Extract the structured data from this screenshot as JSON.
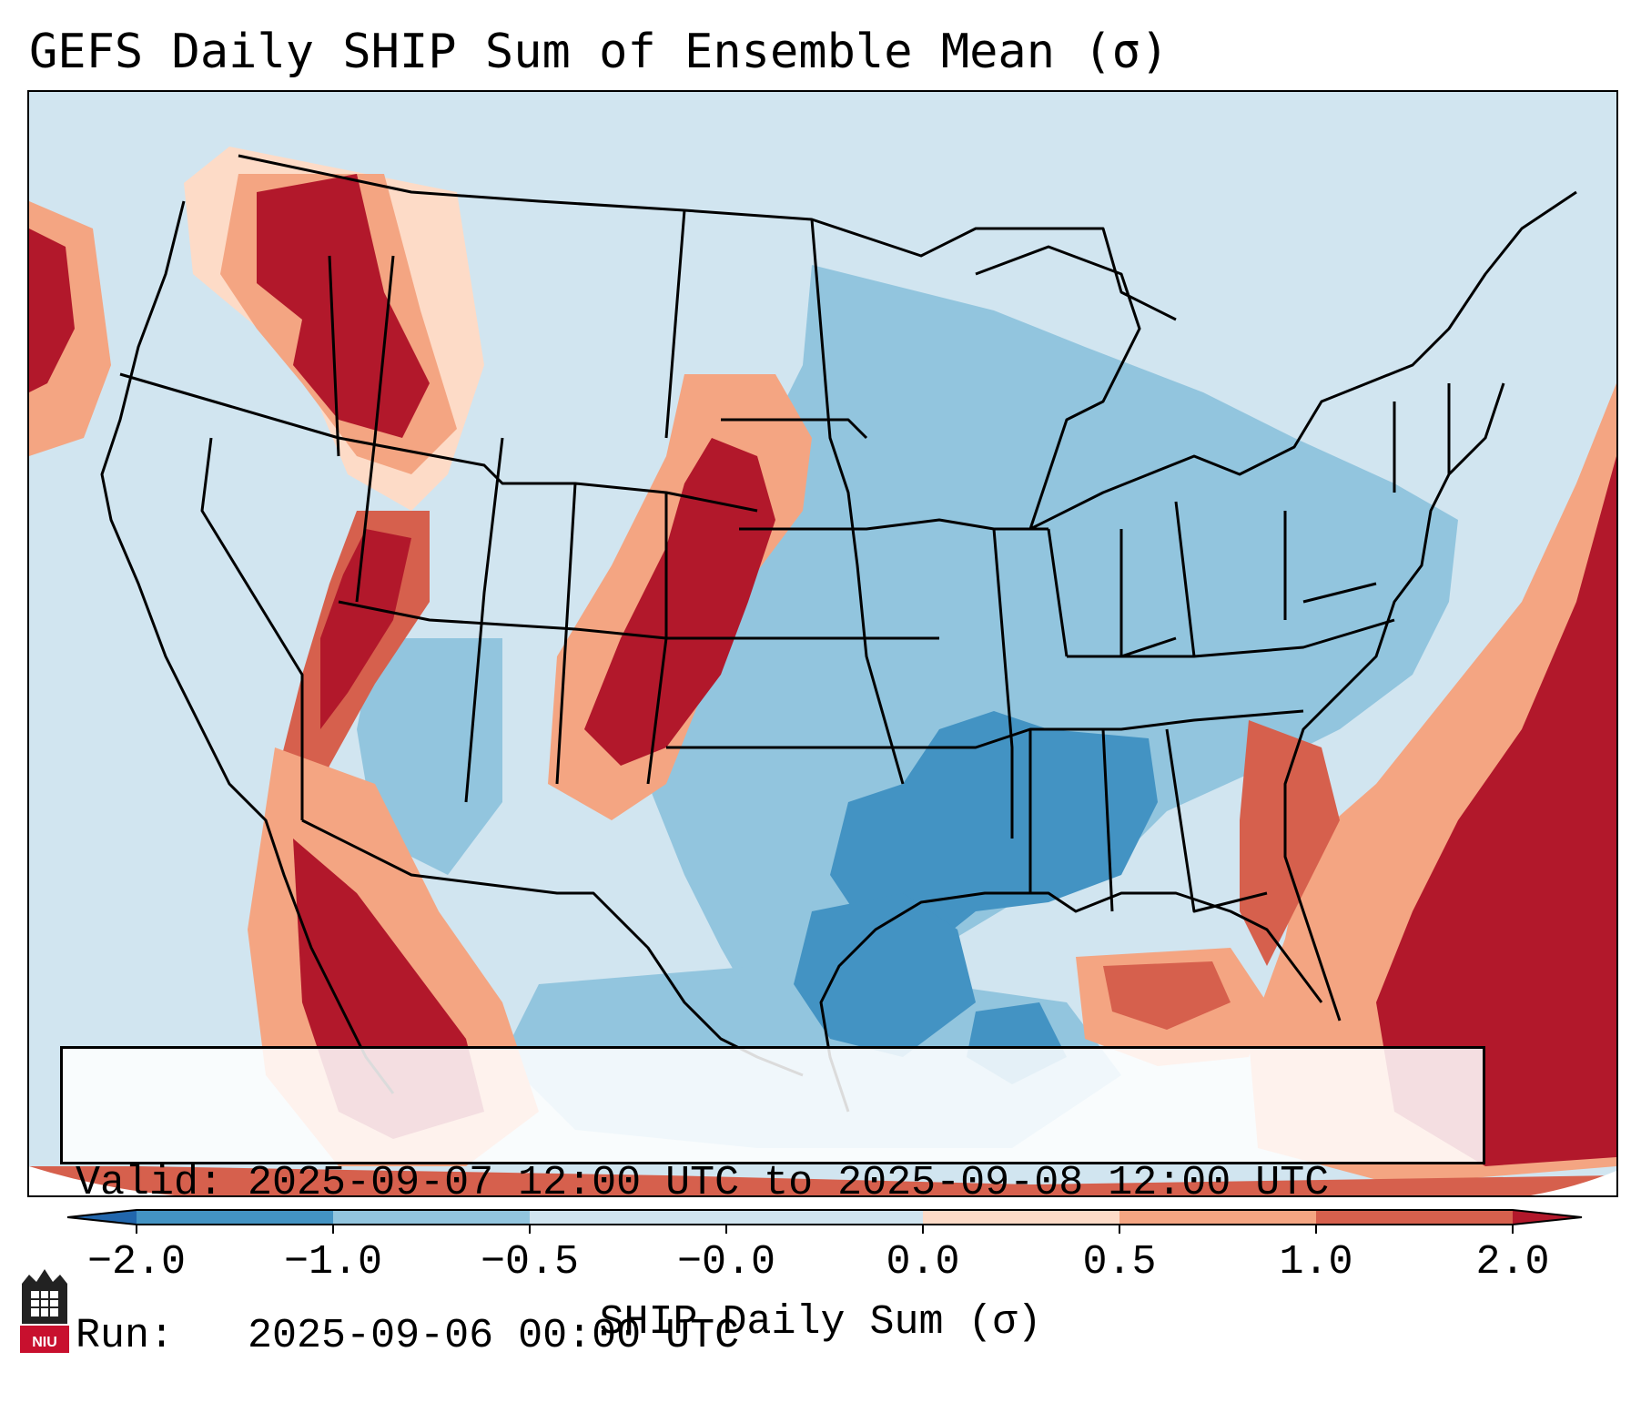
{
  "title": "GEFS Daily SHIP Sum of Ensemble Mean (σ)",
  "info": {
    "valid_label": "Valid:",
    "valid_value": "2025-09-07 12:00 UTC to 2025-09-08 12:00 UTC",
    "run_label": "Run:",
    "run_value": "2025-09-06 00:00 UTC"
  },
  "colorbar": {
    "label": "SHIP Daily Sum (σ)",
    "ticks": [
      "−2.0",
      "−1.0",
      "−0.5",
      "−0.0",
      "0.0",
      "0.5",
      "1.0",
      "2.0"
    ],
    "colors": {
      "under": "#2166ac",
      "bin_m2_m1": "#4393c3",
      "bin_m1_m05": "#92c5de",
      "bin_m05_0": "#d1e5f0",
      "bin_0_05": "#fddbc7",
      "bin_05_1": "#f4a582",
      "bin_1_2": "#d6604d",
      "over": "#b2182b"
    }
  },
  "logo": {
    "text": "NIU"
  }
}
